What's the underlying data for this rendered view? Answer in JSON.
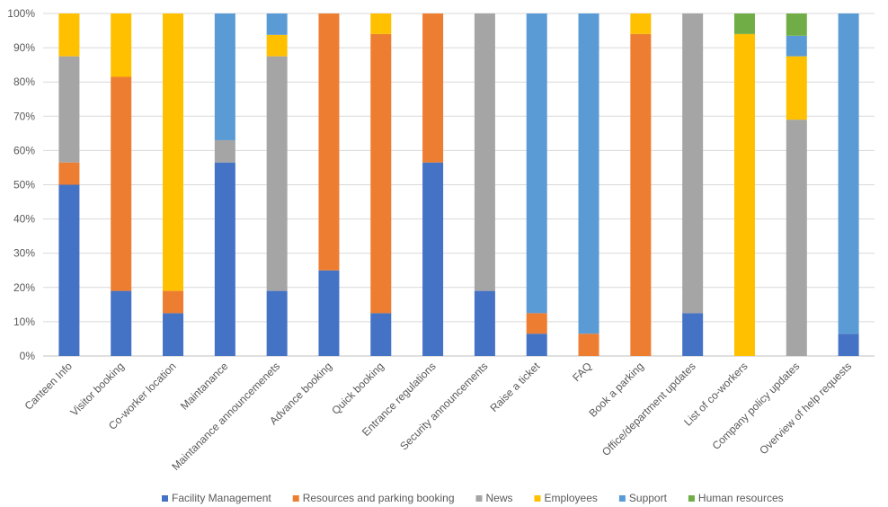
{
  "chart_data": {
    "type": "bar",
    "stacked": "percent",
    "categories": [
      "Canteen Info",
      "Visitor booking",
      "Co-worker location",
      "Maintanance",
      "Maintanance announcemenets",
      "Advance booking",
      "Quick booking",
      "Entrance regulations",
      "Security announcements",
      "Raise a ticket",
      "FAQ",
      "Book a parking",
      "Office/department updates",
      "List of co-workers",
      "Company policy updates",
      "Overview of help requests"
    ],
    "series": [
      {
        "name": "Facility Management",
        "color": "#4472C4",
        "values": [
          50,
          19,
          12.5,
          56.5,
          19,
          25,
          12.5,
          56.5,
          19,
          6.5,
          0,
          0,
          12.5,
          0,
          0,
          6.5
        ]
      },
      {
        "name": "Resources and parking booking",
        "color": "#ED7D31",
        "values": [
          6.5,
          62.5,
          6.5,
          0,
          0,
          75,
          81.5,
          43.5,
          0,
          6,
          6.5,
          94,
          0,
          0,
          0,
          0
        ]
      },
      {
        "name": "News",
        "color": "#A5A5A5",
        "values": [
          31,
          0,
          0,
          6.5,
          68.5,
          0,
          0,
          0,
          81,
          0,
          0,
          0,
          87.5,
          0,
          69,
          0
        ]
      },
      {
        "name": "Employees",
        "color": "#FFC000",
        "values": [
          12.5,
          18.5,
          81,
          0,
          6.25,
          0,
          6,
          0,
          0,
          0,
          0,
          6,
          0,
          94,
          18.5,
          0
        ]
      },
      {
        "name": "Support",
        "color": "#5B9BD5",
        "values": [
          0,
          0,
          0,
          37,
          6.25,
          0,
          0,
          0,
          0,
          87.5,
          93.5,
          0,
          0,
          0,
          6,
          93.5
        ]
      },
      {
        "name": "Human resources",
        "color": "#70AD47",
        "values": [
          0,
          0,
          0,
          0,
          0,
          0,
          0,
          0,
          0,
          0,
          0,
          0,
          0,
          6,
          6.5,
          0
        ]
      }
    ],
    "y_ticks": [
      "0%",
      "10%",
      "20%",
      "30%",
      "40%",
      "50%",
      "60%",
      "70%",
      "80%",
      "90%",
      "100%"
    ],
    "ylim": [
      0,
      100
    ],
    "grid": true,
    "legend_position": "bottom"
  }
}
